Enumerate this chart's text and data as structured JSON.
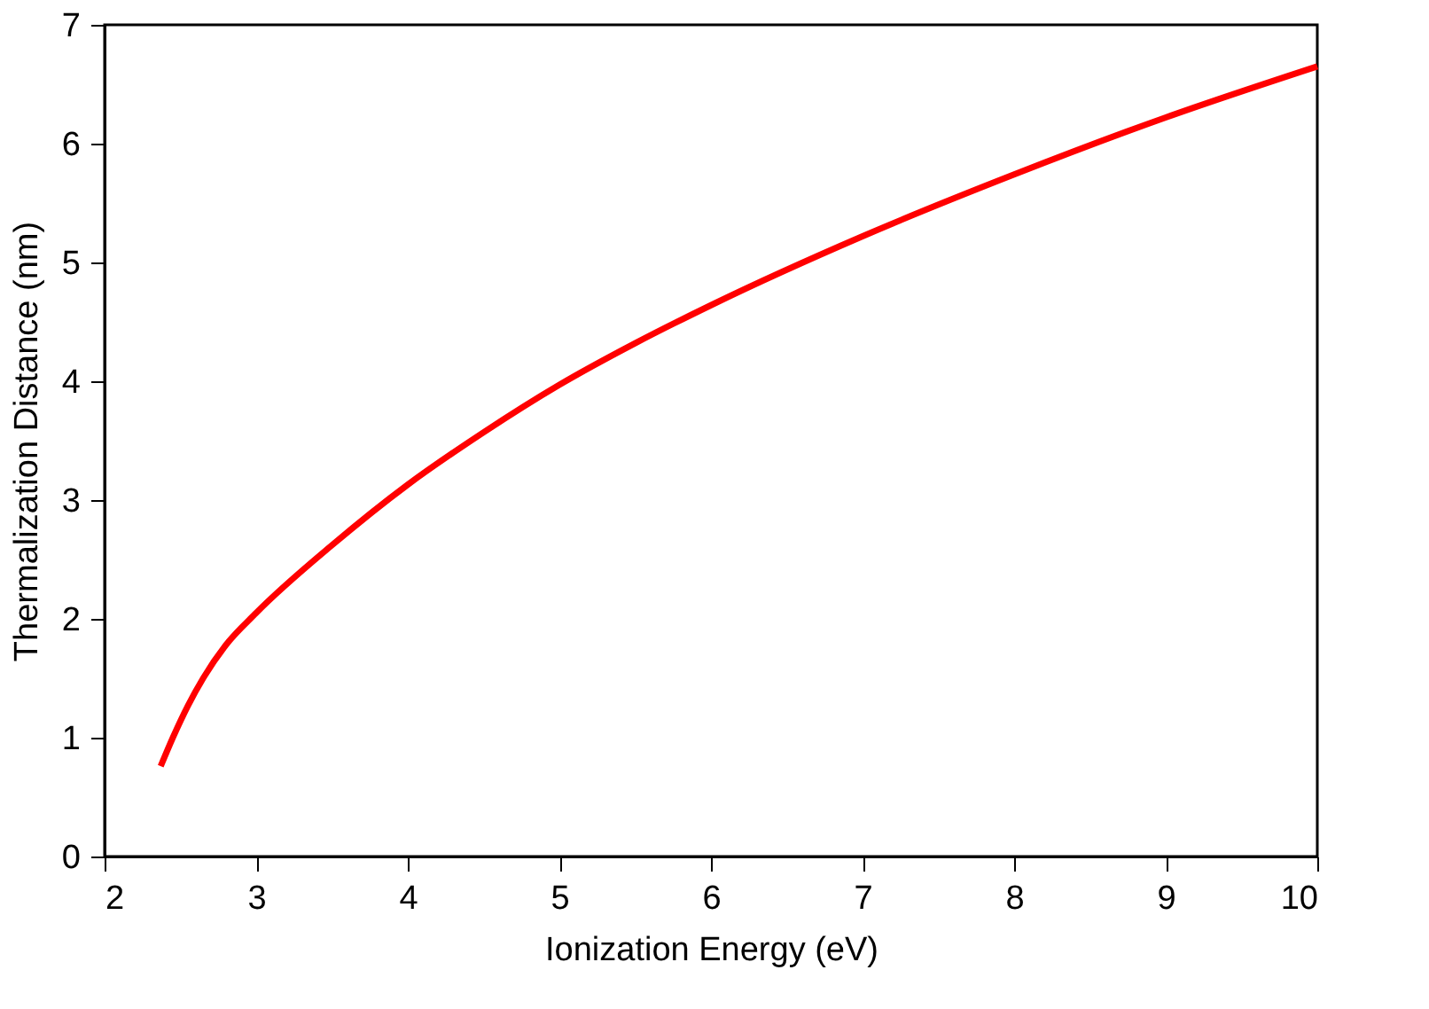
{
  "chart_data": {
    "type": "line",
    "xlabel": "Ionization Energy (eV)",
    "ylabel": "Thermalization Distance (nm)",
    "x": [
      2.37,
      2.45,
      2.55,
      2.65,
      2.8,
      3.0,
      3.5,
      4.0,
      4.5,
      5.0,
      5.5,
      6.0,
      7.0,
      8.0,
      9.0,
      10.0
    ],
    "series": [
      {
        "color": "#ff0000",
        "values": [
          0.76,
          1.0,
          1.27,
          1.5,
          1.78,
          2.05,
          2.62,
          3.13,
          3.57,
          3.97,
          4.32,
          4.64,
          5.22,
          5.74,
          6.22,
          6.65
        ]
      }
    ],
    "xlim": [
      2,
      10
    ],
    "xticks": [
      2,
      3,
      4,
      5,
      6,
      7,
      8,
      9,
      10
    ],
    "ylim": [
      0,
      7
    ],
    "yticks": [
      0,
      1,
      2,
      3,
      4,
      5,
      6,
      7
    ],
    "grid": false,
    "marker": "none",
    "line_style": "solid"
  }
}
